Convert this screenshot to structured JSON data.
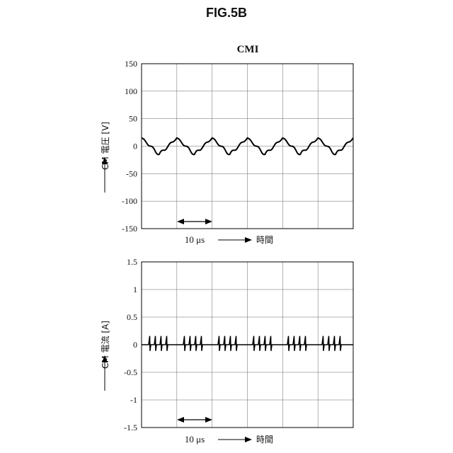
{
  "figure_label": "FIG.5B",
  "chart_data": [
    {
      "type": "line",
      "title": "CMI",
      "ylabel": "CM 電圧 [V]",
      "ylim": [
        -150,
        150
      ],
      "yticks": [
        "150",
        "100",
        "50",
        "0",
        "-50",
        "-100",
        "-150"
      ],
      "grid": true,
      "duration_label": "10 μs",
      "time_label": "時間",
      "series": [
        {
          "shape": "triangle-wave",
          "periods": 6,
          "peak_values": [
            15,
            15,
            15,
            15,
            15,
            15
          ],
          "trough_values": [
            -15,
            -15,
            -15,
            -15,
            -15,
            -15
          ]
        }
      ]
    },
    {
      "type": "line",
      "title": "",
      "ylabel": "CM 電流 [A]",
      "ylim": [
        -1.5,
        1.5
      ],
      "yticks": [
        "1.5",
        "1",
        "0.5",
        "0",
        "-0.5",
        "-1",
        "-1.5"
      ],
      "grid": true,
      "duration_label": "10 μs",
      "time_label": "時間",
      "series": [
        {
          "shape": "spikes-about-zero",
          "baseline": 0,
          "spike_amplitude": 0.15
        }
      ]
    }
  ]
}
